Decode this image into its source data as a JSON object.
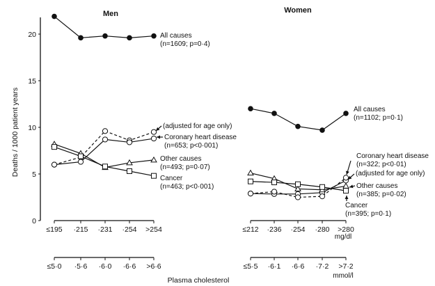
{
  "chart_data": [
    {
      "type": "line",
      "title": "Men",
      "ylabel": "Deaths / 1000 patient years",
      "xlabel": "Plasma cholesterol",
      "ylim": [
        0,
        22
      ],
      "yticks": [
        0,
        5,
        10,
        15,
        20
      ],
      "categories_mgdl": [
        "≤195",
        "·215",
        "·231",
        "·254",
        ">254"
      ],
      "categories_mmol": [
        "≤5·0",
        "·5·6",
        "·6·0",
        "·6·6",
        ">6·6"
      ],
      "series": [
        {
          "name": "All causes",
          "stats": "(n=1609; p=0·4)",
          "marker": "filled-circle",
          "dash": false,
          "values": [
            21.9,
            19.6,
            19.8,
            19.6,
            19.8
          ]
        },
        {
          "name": "(adjusted for age only)",
          "marker": "open-circle",
          "dash": true,
          "values": [
            6.0,
            6.8,
            9.6,
            8.6,
            9.5
          ]
        },
        {
          "name": "Coronary heart disease",
          "stats": "(n=653; p<0·001)",
          "marker": "open-circle",
          "dash": false,
          "values": [
            6.0,
            6.3,
            8.7,
            8.4,
            8.8
          ]
        },
        {
          "name": "Other causes",
          "stats": "(n=493; p=0·07)",
          "marker": "triangle",
          "dash": false,
          "values": [
            8.2,
            7.2,
            5.7,
            6.2,
            6.5
          ]
        },
        {
          "name": "Cancer",
          "stats": "(n=463; p<0·001)",
          "marker": "square",
          "dash": false,
          "values": [
            7.9,
            6.9,
            5.8,
            5.3,
            4.8
          ]
        }
      ]
    },
    {
      "type": "line",
      "title": "Women",
      "ylim": [
        0,
        22
      ],
      "categories_mgdl": [
        "≤212",
        "·236",
        "·254",
        "·280",
        ">280"
      ],
      "categories_mmol": [
        "≤5·5",
        "·6·1",
        "·6·6",
        "·7·2",
        ">7·2"
      ],
      "unit_mgdl": "mg/dl",
      "unit_mmol": "mmol/l",
      "series": [
        {
          "name": "All causes",
          "stats": "(n=1102; p=0·1)",
          "marker": "filled-circle",
          "dash": false,
          "values": [
            12.0,
            11.5,
            10.1,
            9.7,
            11.5
          ]
        },
        {
          "name": "Coronary heart disease",
          "stats": "(n=322; p<0·01)",
          "marker": "open-circle",
          "dash": false,
          "values": [
            2.9,
            2.85,
            2.85,
            3.0,
            4.3
          ]
        },
        {
          "name": "(adjusted for age only)",
          "marker": "open-circle",
          "dash": true,
          "values": [
            2.9,
            3.1,
            2.5,
            2.6,
            4.6
          ]
        },
        {
          "name": "Other causes",
          "stats": "(n=385; p=0·02)",
          "marker": "triangle",
          "dash": false,
          "values": [
            5.1,
            4.5,
            3.4,
            3.3,
            3.7
          ]
        },
        {
          "name": "Cancer",
          "stats": "(n=395; p=0·1)",
          "marker": "square",
          "dash": false,
          "values": [
            4.2,
            4.1,
            3.9,
            3.6,
            3.2
          ]
        }
      ]
    }
  ]
}
